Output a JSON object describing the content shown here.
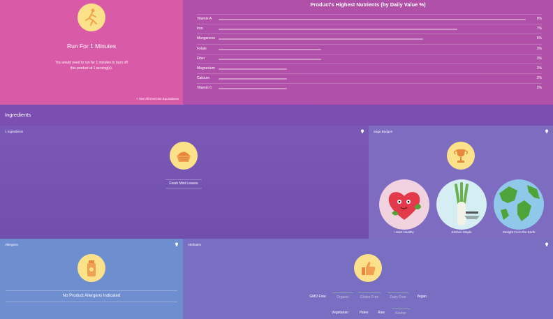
{
  "exercise": {
    "title": "Run For 1 Minutes",
    "description": "You would need to run for 1 minutes to burn off this product at 1 serving(s).",
    "link": "+ See All Exercise Equivalents",
    "icon": "runner-icon"
  },
  "nutrients": {
    "title": "Product's Highest Nutrients (by Daily Value %)",
    "items": [
      {
        "name": "Vitamin A",
        "value": "9%",
        "pct": 9
      },
      {
        "name": "Iron",
        "value": "7%",
        "pct": 7
      },
      {
        "name": "Manganese",
        "value": "6%",
        "pct": 6
      },
      {
        "name": "Folate",
        "value": "3%",
        "pct": 3
      },
      {
        "name": "Fiber",
        "value": "3%",
        "pct": 3
      },
      {
        "name": "Magnesium",
        "value": "2%",
        "pct": 2
      },
      {
        "name": "Calcium",
        "value": "2%",
        "pct": 2
      },
      {
        "name": "Vitamin C",
        "value": "2%",
        "pct": 2
      }
    ]
  },
  "ingredients": {
    "header": "Ingredients",
    "label": "1 Ingredients",
    "items": [
      "Fresh Mint Leaves"
    ],
    "icon": "basket-icon"
  },
  "badges": {
    "label": "Sage Badges",
    "icon": "trophy-icon",
    "items": [
      {
        "label": "Heart Healthy",
        "icon": "heart-icon"
      },
      {
        "label": "Kitchen Staple",
        "icon": "leek-icon"
      },
      {
        "label": "Straight From the Earth",
        "icon": "globe-icon"
      }
    ]
  },
  "allergens": {
    "label": "Allergens",
    "message": "No Product Allergens Indicated",
    "icon": "allergen-bottle-icon"
  },
  "attributes": {
    "label": "Attributes",
    "icon": "thumbs-up-icon",
    "row1": [
      {
        "label": "GMO Free",
        "active": true
      },
      {
        "label": "Organic",
        "active": false
      },
      {
        "label": "Gluten Free",
        "active": false
      },
      {
        "label": "Dairy Free",
        "active": false
      },
      {
        "label": "Vegan",
        "active": true
      }
    ],
    "row2": [
      {
        "label": "Vegetarian",
        "active": true
      },
      {
        "label": "Paleo",
        "active": true
      },
      {
        "label": "Raw",
        "active": true
      },
      {
        "label": "Kosher",
        "active": false
      }
    ]
  },
  "colors": {
    "exercise_bg": "#d95aa6",
    "nutrients_bg": "#b050a8",
    "ingredients_bg": "#7b58b6",
    "badges_bg": "#7d6cc0",
    "allergens_bg": "#6e8ed0",
    "attributes_bg": "#786fc2",
    "icon_circle": "#fbe28a"
  }
}
